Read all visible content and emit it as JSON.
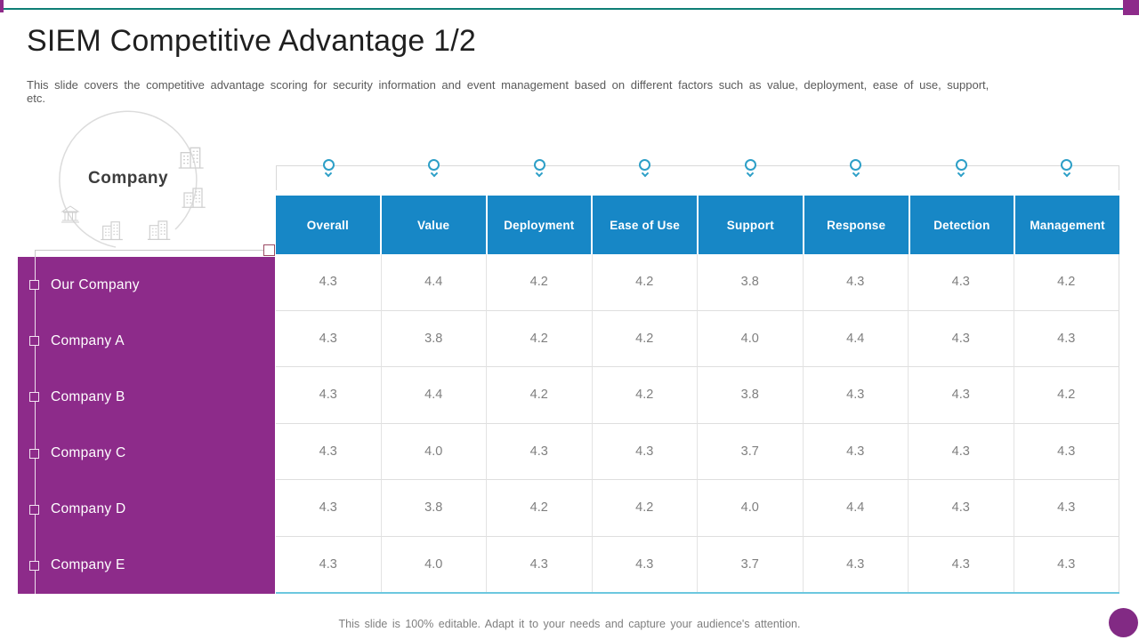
{
  "slide": {
    "title": "SIEM Competitive Advantage 1/2",
    "subtitle": "This slide covers the competitive advantage scoring for security information and event management based on different factors such as value, deployment, ease of use, support, etc.",
    "footer": "This slide is 100% editable. Adapt it to your needs and capture your audience's attention."
  },
  "bubble": {
    "label": "Company",
    "icons": [
      "office-building-icon",
      "skyscraper-icon",
      "bank-icon",
      "buildings-cluster-icon",
      "factory-building-icon"
    ]
  },
  "colors": {
    "accent_teal": "#0E7F76",
    "header_blue": "#1787C6",
    "panel_purple": "#8D2B8A",
    "pin_teal": "#2D9FC7",
    "table_bottom_cyan": "#6CC7DF",
    "value_gray": "#7F7F7F"
  },
  "chart_data": {
    "type": "table",
    "title": "SIEM Competitive Advantage 1/2",
    "columns": [
      "Overall",
      "Value",
      "Deployment",
      "Ease of Use",
      "Support",
      "Response",
      "Detection",
      "Management"
    ],
    "rows": [
      {
        "label": "Our Company",
        "values": [
          "4.3",
          "4.4",
          "4.2",
          "4.2",
          "3.8",
          "4.3",
          "4.3",
          "4.2"
        ]
      },
      {
        "label": "Company A",
        "values": [
          "4.3",
          "3.8",
          "4.2",
          "4.2",
          "4.0",
          "4.4",
          "4.3",
          "4.3"
        ]
      },
      {
        "label": "Company B",
        "values": [
          "4.3",
          "4.4",
          "4.2",
          "4.2",
          "3.8",
          "4.3",
          "4.3",
          "4.2"
        ]
      },
      {
        "label": "Company C",
        "values": [
          "4.3",
          "4.0",
          "4.3",
          "4.3",
          "3.7",
          "4.3",
          "4.3",
          "4.3"
        ]
      },
      {
        "label": "Company D",
        "values": [
          "4.3",
          "3.8",
          "4.2",
          "4.2",
          "4.0",
          "4.4",
          "4.3",
          "4.3"
        ]
      },
      {
        "label": "Company E",
        "values": [
          "4.3",
          "4.0",
          "4.3",
          "4.3",
          "3.7",
          "4.3",
          "4.3",
          "4.3"
        ]
      }
    ]
  }
}
